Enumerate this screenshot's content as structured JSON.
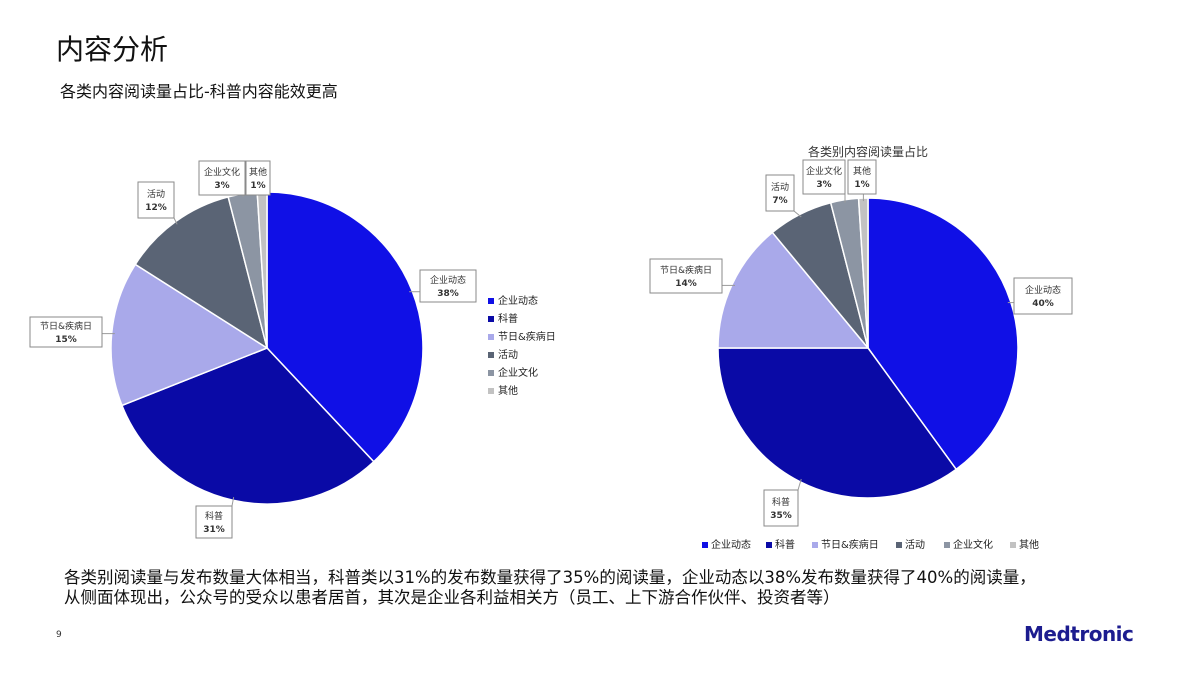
{
  "slide": {
    "title": "内容分析",
    "subtitle": "各类内容阅读量占比-科普内容能效更高",
    "summary_line1": "各类别阅读量与发布数量大体相当，科普类以31%的发布数量获得了35%的阅读量，企业动态以38%发布数量获得了40%的阅读量，",
    "summary_line2": "从侧面体现出，公众号的受众以患者居首，其次是企业各利益相关方（员工、上下游合作伙伴、投资者等）",
    "page_number": "9",
    "logo_text": "Medtronic"
  },
  "colors": {
    "企业动态": "#1010e6",
    "科普": "#0a0aa6",
    "节日&疾病日": "#a9a9ea",
    "活动": "#5a6475",
    "企业文化": "#8c95a3",
    "其他": "#c2c2c2"
  },
  "chart_data": [
    {
      "type": "pie",
      "title": "",
      "categories": [
        "企业动态",
        "科普",
        "节日&疾病日",
        "活动",
        "企业文化",
        "其他"
      ],
      "values": [
        38,
        31,
        15,
        12,
        3,
        1
      ],
      "data_labels": [
        "38%",
        "31%",
        "15%",
        "12%",
        "3%",
        "1%"
      ],
      "callout_names": [
        "企业动态",
        "科普",
        "节日&疾病日",
        "活动",
        "企业文化",
        "其他"
      ],
      "legend": {
        "placement": "right",
        "entries": [
          "企业动态",
          "科普",
          "节日&疾病日",
          "活动",
          "企业文化",
          "其他"
        ]
      }
    },
    {
      "type": "pie",
      "title": "各类别内容阅读量占比",
      "categories": [
        "企业动态",
        "科普",
        "节日&疾病日",
        "活动",
        "企业文化",
        "其他"
      ],
      "values": [
        40,
        35,
        14,
        7,
        3,
        1
      ],
      "data_labels": [
        "40%",
        "35%",
        "14%",
        "7%",
        "3%",
        "1%"
      ],
      "callout_names": [
        "企业动态",
        "科普",
        "节日&疾病日",
        "活动",
        "企业文化",
        "其他"
      ],
      "legend": {
        "placement": "bottom",
        "entries": [
          "企业动态",
          "科普",
          "节日&疾病日",
          "活动",
          "企业文化",
          "其他"
        ]
      }
    }
  ]
}
